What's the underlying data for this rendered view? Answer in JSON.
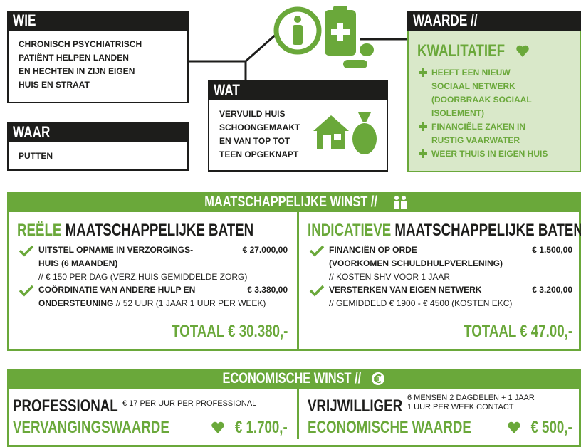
{
  "wie": {
    "title": "WIE",
    "lines": [
      "CHRONISCH PSYCHIATRISCH",
      "PATIËNT HELPEN LANDEN",
      "EN HECHTEN IN ZIJN EIGEN",
      "HUIS EN STRAAT"
    ]
  },
  "waar": {
    "title": "WAAR",
    "text": "PUTTEN"
  },
  "wat": {
    "title": "WAT",
    "lines": [
      "VERVUILD HUIS",
      "SCHOONGEMAAKT",
      "EN VAN TOP TOT",
      "TEEN OPGEKNAPT"
    ]
  },
  "waarde": {
    "title": "WAARDE //",
    "subtitle": "KWALITATIEF",
    "items": [
      [
        "HEEFT EEN NIEUW",
        "SOCIAAL NETWERK",
        "(DOORBRAAK SOCIAAL",
        "ISOLEMENT)"
      ],
      [
        "FINANCIËLE ZAKEN IN",
        "RUSTIG VAARWATER"
      ],
      [
        "WEER THUIS IN EIGEN HUIS"
      ]
    ]
  },
  "maatschappelijk": {
    "title": "MAATSCHAPPELIJKE WINST //",
    "reeel": {
      "title_highlight": "REËLE",
      "title_rest": "MAATSCHAPPELIJKE BATEN",
      "items": [
        {
          "lines": [
            "UITSTEL OPNAME IN VERZORGINGS-",
            "HUIS (6 MAANDEN)"
          ],
          "amount": "€ 27.000,00",
          "note": "// € 150 PER DAG (VERZ.HUIS GEMIDDELDE ZORG)"
        },
        {
          "lines": [
            "COÖRDINATIE VAN ANDERE HULP EN",
            "ONDERSTEUNING"
          ],
          "amount": "€ 3.380,00",
          "note": "// 52 UUR (1 JAAR 1 UUR PER WEEK)"
        }
      ],
      "total": "TOTAAL € 30.380,-"
    },
    "indicatief": {
      "title_highlight": "INDICATIEVE",
      "title_rest": "MAATSCHAPPELIJKE BATEN",
      "items": [
        {
          "lines": [
            "FINANCIËN OP ORDE",
            "(VOORKOMEN SCHULDHULPVERLENING)"
          ],
          "amount": "€ 1.500,00",
          "note": "// KOSTEN SHV VOOR 1 JAAR"
        },
        {
          "lines": [
            "VERSTERKEN VAN EIGEN NETWERK"
          ],
          "amount": "€ 3.200,00",
          "note": "// GEMIDDELD € 1900 - € 4500 (KOSTEN EKC)"
        }
      ],
      "total": "TOTAAL € 47.00,-"
    }
  },
  "economisch": {
    "title": "ECONOMISCHE WINST //",
    "professional": {
      "title": "PROFESSIONAL",
      "note": "€ 17 PER UUR PER PROFESSIONAL",
      "label": "VERVANGINGSWAARDE",
      "amount": "€ 1.700,-"
    },
    "vrijwilliger": {
      "title": "VRIJWILLIGER",
      "note_lines": [
        "6 MENSEN 2 DAGDELEN + 1 JAAR",
        "1 UUR PER WEEK CONTACT"
      ],
      "label": "ECONOMISCHE WAARDE",
      "amount": "€ 500,-"
    }
  }
}
